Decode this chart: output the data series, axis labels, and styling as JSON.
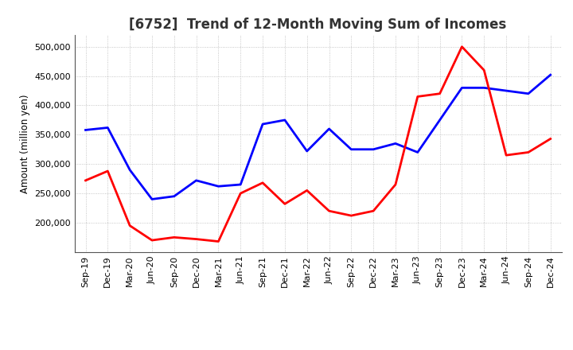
{
  "title": "[6752]  Trend of 12-Month Moving Sum of Incomes",
  "ylabel": "Amount (million yen)",
  "x_labels": [
    "Sep-19",
    "Dec-19",
    "Mar-20",
    "Jun-20",
    "Sep-20",
    "Dec-20",
    "Mar-21",
    "Jun-21",
    "Sep-21",
    "Dec-21",
    "Mar-22",
    "Jun-22",
    "Sep-22",
    "Dec-22",
    "Mar-23",
    "Jun-23",
    "Sep-23",
    "Dec-23",
    "Mar-24",
    "Jun-24",
    "Sep-24",
    "Dec-24"
  ],
  "ordinary_income": [
    358000,
    362000,
    290000,
    240000,
    245000,
    272000,
    262000,
    265000,
    368000,
    375000,
    322000,
    360000,
    325000,
    325000,
    335000,
    320000,
    375000,
    430000,
    430000,
    425000,
    420000,
    452000
  ],
  "net_income": [
    272000,
    288000,
    195000,
    170000,
    175000,
    172000,
    168000,
    250000,
    268000,
    232000,
    255000,
    220000,
    212000,
    220000,
    265000,
    415000,
    420000,
    500000,
    460000,
    315000,
    320000,
    343000
  ],
  "ordinary_color": "#0000ff",
  "net_color": "#ff0000",
  "ylim": [
    150000,
    520000
  ],
  "yticks": [
    200000,
    250000,
    300000,
    350000,
    400000,
    450000,
    500000
  ],
  "background_color": "#ffffff",
  "grid_color": "#999999",
  "line_width": 2.0,
  "title_color": "#333333",
  "title_fontsize": 12,
  "axis_label_fontsize": 8.5,
  "tick_fontsize": 8.0,
  "legend_fontsize": 9
}
